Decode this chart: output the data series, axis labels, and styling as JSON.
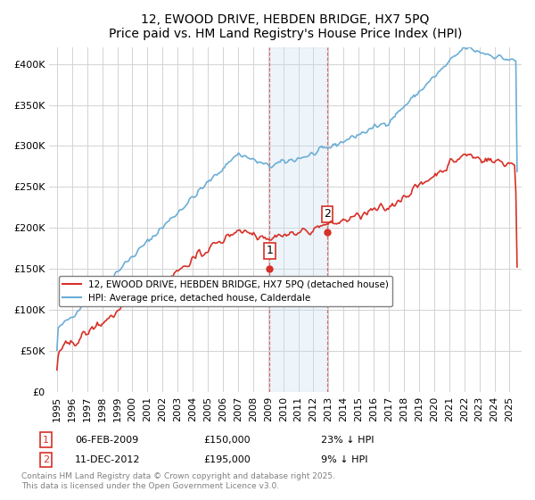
{
  "title": "12, EWOOD DRIVE, HEBDEN BRIDGE, HX7 5PQ",
  "subtitle": "Price paid vs. HM Land Registry's House Price Index (HPI)",
  "legend_line1": "12, EWOOD DRIVE, HEBDEN BRIDGE, HX7 5PQ (detached house)",
  "legend_line2": "HPI: Average price, detached house, Calderdale",
  "annotation1_label": "1",
  "annotation1_date": "06-FEB-2009",
  "annotation1_price": "£150,000",
  "annotation1_hpi": "23% ↓ HPI",
  "annotation2_label": "2",
  "annotation2_date": "11-DEC-2012",
  "annotation2_price": "£195,000",
  "annotation2_hpi": "9% ↓ HPI",
  "footer": "Contains HM Land Registry data © Crown copyright and database right 2025.\nThis data is licensed under the Open Government Licence v3.0.",
  "hpi_color": "#6baed6",
  "price_color": "#d73027",
  "shaded_color": "#c6dbef",
  "background_color": "#ffffff",
  "ylim": [
    0,
    420000
  ],
  "yticks": [
    0,
    50000,
    100000,
    150000,
    200000,
    250000,
    300000,
    350000,
    400000
  ]
}
